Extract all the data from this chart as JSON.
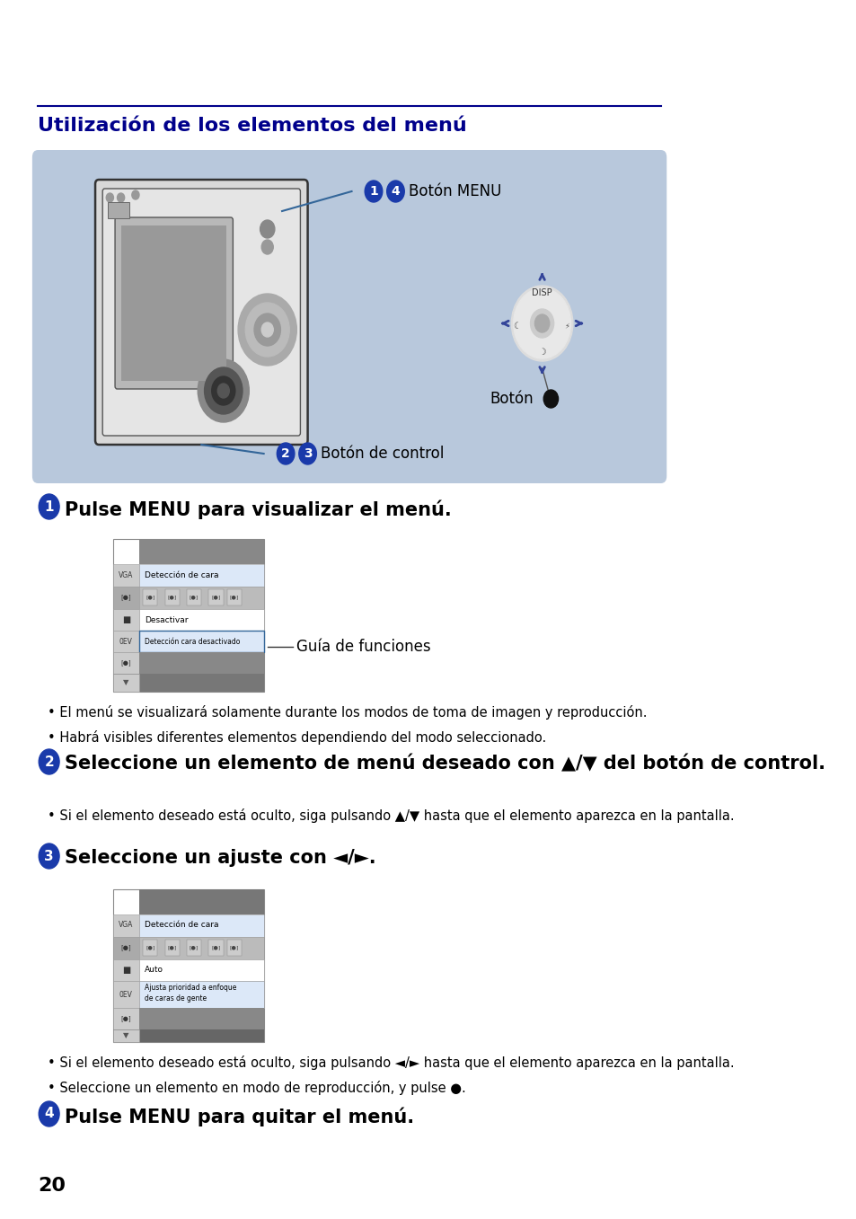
{
  "bg_color": "#ffffff",
  "title_color": "#00008B",
  "title_text": "Utilización de los elementos del menú",
  "title_underline_color": "#00008B",
  "blue_box_bg": "#b8c8dc",
  "label_boton_menu": "Botón MENU",
  "label_boton_control": "Botón de control",
  "label_boton_circle": "Botón",
  "step1_heading": "Pulse MENU para visualizar el menú.",
  "step2_heading": "Seleccione un elemento de menú deseado con ▲/▼ del botón de control.",
  "step3_heading": "Seleccione un ajuste con ◄/►.",
  "step4_heading": "Pulse MENU para quitar el menú.",
  "bullet1a": "El menú se visualizará solamente durante los modos de toma de imagen y reproducción.",
  "bullet1b": "Habrá visibles diferentes elementos dependiendo del modo seleccionado.",
  "bullet2a": "Si el elemento deseado está oculto, siga pulsando ▲/▼ hasta que el elemento aparezca en la pantalla.",
  "bullet3a": "Si el elemento deseado está oculto, siga pulsando ◄/► hasta que el elemento aparezca en la pantalla.",
  "bullet3b": "Seleccione un elemento en modo de reproducción, y pulse ●.",
  "guia_text": "Guía de funciones",
  "page_number": "20",
  "heading_color": "#000000",
  "body_color": "#000000",
  "step_circle_color": "#1a3aaa",
  "step_circle_text_color": "#ffffff",
  "line_color": "#000090",
  "disp_label": "DISP"
}
